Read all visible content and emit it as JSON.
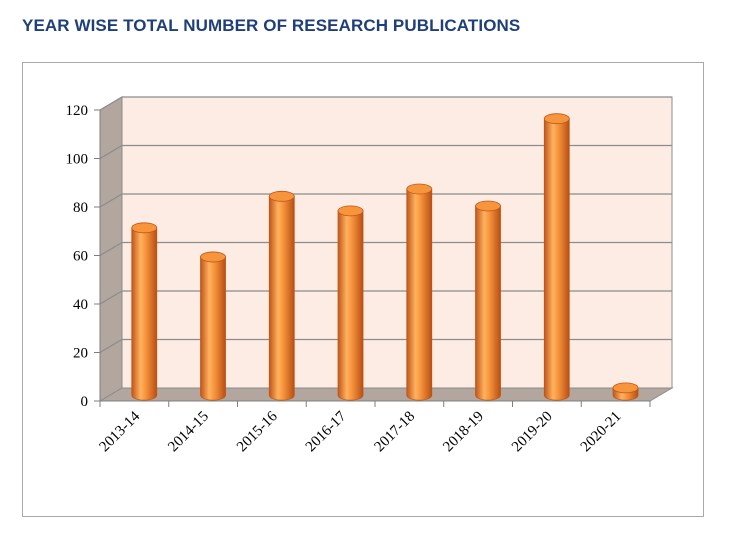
{
  "page": {
    "title": "YEAR WISE TOTAL NUMBER OF RESEARCH PUBLICATIONS"
  },
  "colors": {
    "title": "#1f3f7a",
    "bar": "#f7953d",
    "bar_dark": "#c0561a",
    "bar_light": "#ffc98c",
    "back_wall": "#fdece4",
    "side_wall": "#b2a69e",
    "floor": "#b2a69e",
    "gridline": "#8c8c8c"
  },
  "chart_data": {
    "type": "bar",
    "title": "",
    "xlabel": "",
    "ylabel": "",
    "categories": [
      "2013-14",
      "2014-15",
      "2015-16",
      "2016-17",
      "2017-18",
      "2018-19",
      "2019-20",
      "2020-21"
    ],
    "values": [
      69,
      57,
      82,
      76,
      85,
      78,
      114,
      3
    ],
    "ylim": [
      0,
      120
    ],
    "yticks": [
      0,
      20,
      40,
      60,
      80,
      100,
      120
    ],
    "grid": true,
    "style": "3d-cylinder",
    "legend": "none"
  }
}
